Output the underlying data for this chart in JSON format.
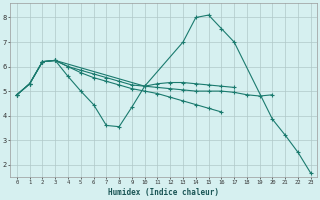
{
  "xlabel": "Humidex (Indice chaleur)",
  "bg_color": "#d6f0f0",
  "grid_color": "#b0c8c8",
  "line_color": "#1a7a6e",
  "xlim": [
    -0.5,
    23.5
  ],
  "ylim": [
    1.5,
    8.6
  ],
  "xticks": [
    0,
    1,
    2,
    3,
    4,
    5,
    6,
    7,
    8,
    9,
    10,
    11,
    12,
    13,
    14,
    15,
    16,
    17,
    18,
    19,
    20,
    21,
    22,
    23
  ],
  "yticks": [
    2,
    3,
    4,
    5,
    6,
    7,
    8
  ],
  "lines": [
    {
      "x": [
        0,
        1,
        2,
        3,
        10,
        13,
        14,
        15,
        16,
        17,
        20,
        21,
        22,
        23
      ],
      "y": [
        4.85,
        5.3,
        6.2,
        6.25,
        5.2,
        7.0,
        8.0,
        8.1,
        7.55,
        7.0,
        3.85,
        3.2,
        2.5,
        1.65
      ]
    },
    {
      "x": [
        0,
        1,
        2,
        3,
        4,
        5,
        6,
        7,
        8,
        9,
        10,
        11,
        12,
        13,
        14,
        15,
        16,
        17,
        18,
        19,
        20
      ],
      "y": [
        4.85,
        5.3,
        6.2,
        6.25,
        6.0,
        5.85,
        5.7,
        5.55,
        5.4,
        5.25,
        5.2,
        5.15,
        5.1,
        5.05,
        5.0,
        5.0,
        5.0,
        4.95,
        4.85,
        4.8,
        4.85
      ]
    },
    {
      "x": [
        0,
        1,
        2,
        3,
        4,
        5,
        6,
        7,
        8,
        9,
        10,
        11,
        12,
        13,
        14,
        15,
        16,
        17
      ],
      "y": [
        4.85,
        5.3,
        6.2,
        6.25,
        5.6,
        5.0,
        4.45,
        3.6,
        3.55,
        4.35,
        5.2,
        5.3,
        5.35,
        5.35,
        5.3,
        5.25,
        5.2,
        5.15
      ]
    },
    {
      "x": [
        0,
        1,
        2,
        3,
        4,
        5,
        6,
        7,
        8,
        9,
        10,
        11,
        12,
        13,
        14,
        15,
        16,
        17,
        18,
        19,
        20,
        21,
        22,
        23
      ],
      "y": [
        4.85,
        5.3,
        6.2,
        6.25,
        6.0,
        5.75,
        5.55,
        5.4,
        5.25,
        5.1,
        5.0,
        4.9,
        4.75,
        4.6,
        4.45,
        4.3,
        4.15,
        null,
        null,
        null,
        null,
        null,
        null,
        null
      ]
    }
  ]
}
